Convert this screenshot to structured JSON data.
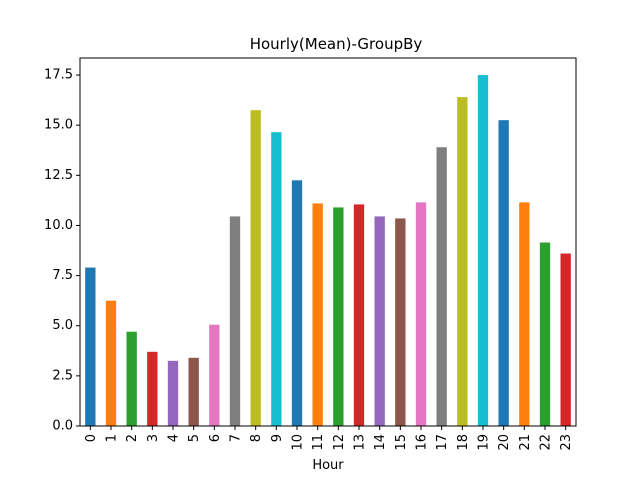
{
  "chart_data": {
    "type": "bar",
    "title": "Hourly(Mean)-GroupBy",
    "xlabel": "Hour",
    "ylabel": "",
    "ylim": [
      0,
      18.35
    ],
    "yticks": [
      "0.0",
      "2.5",
      "5.0",
      "7.5",
      "10.0",
      "12.5",
      "15.0",
      "17.5"
    ],
    "categories": [
      "0",
      "1",
      "2",
      "3",
      "4",
      "5",
      "6",
      "7",
      "8",
      "9",
      "10",
      "11",
      "12",
      "13",
      "14",
      "15",
      "16",
      "17",
      "18",
      "19",
      "20",
      "21",
      "22",
      "23"
    ],
    "values": [
      7.9,
      6.25,
      4.7,
      3.7,
      3.25,
      3.4,
      5.05,
      10.45,
      15.75,
      14.65,
      12.25,
      11.1,
      10.9,
      11.05,
      10.45,
      10.35,
      11.15,
      13.9,
      16.4,
      17.5,
      15.25,
      11.15,
      9.15,
      8.6
    ],
    "colors": [
      "#1f77b4",
      "#ff7f0e",
      "#2ca02c",
      "#d62728",
      "#9467bd",
      "#8c564b",
      "#e377c2",
      "#7f7f7f",
      "#bcbd22",
      "#17becf"
    ],
    "grid": false,
    "legend": "none"
  }
}
